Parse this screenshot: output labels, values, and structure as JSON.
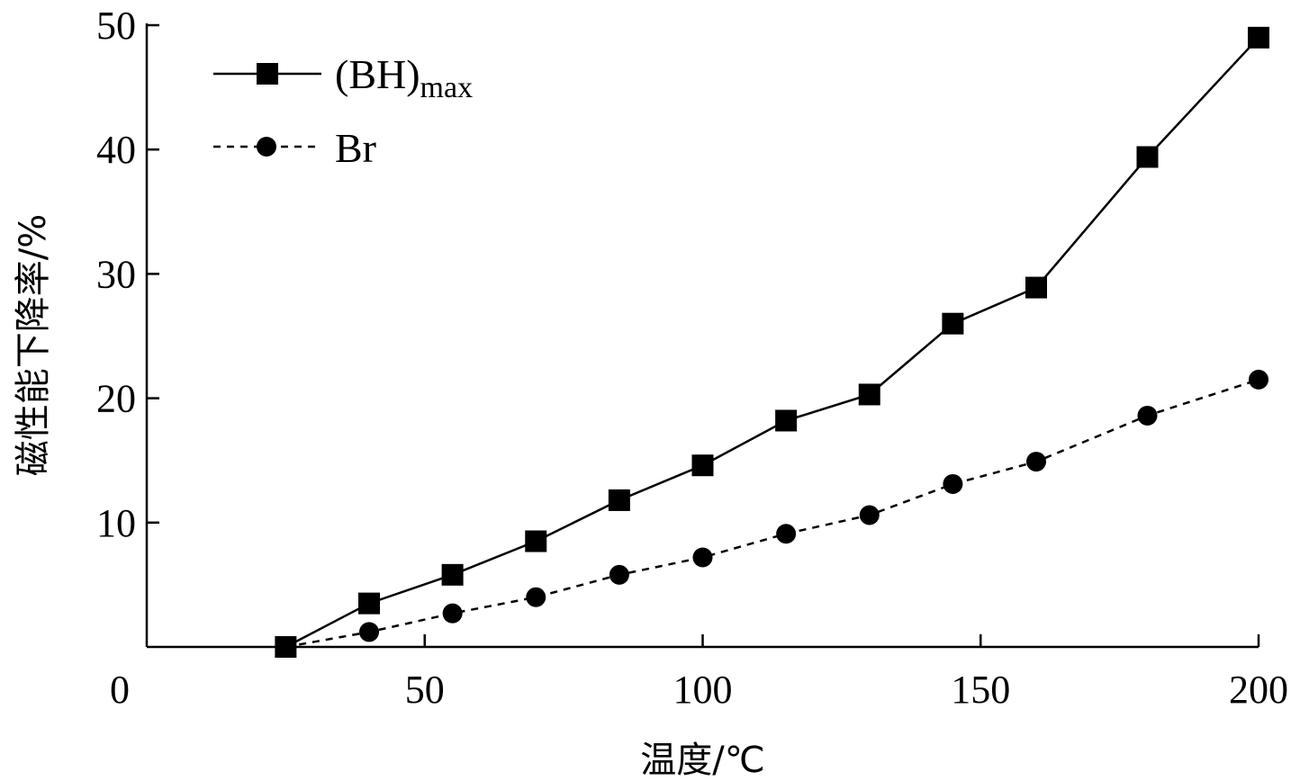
{
  "chart_data": {
    "type": "line",
    "xlabel": "温度/℃",
    "ylabel": "磁性能下降率/%",
    "xlim": [
      0,
      200
    ],
    "ylim": [
      0,
      50
    ],
    "x_ticks": [
      50,
      100,
      150,
      200
    ],
    "y_ticks": [
      10,
      20,
      30,
      40,
      50
    ],
    "origin_label": "0",
    "grid": false,
    "legend_position": "top-left",
    "series": [
      {
        "name": "(BH)max",
        "name_main": "(BH)",
        "name_sub": "max",
        "marker": "square",
        "line_style": "solid",
        "color": "#000000",
        "x": [
          25,
          40,
          55,
          70,
          85,
          100,
          115,
          130,
          145,
          160,
          180,
          200
        ],
        "y": [
          0,
          3.5,
          5.8,
          8.5,
          11.8,
          14.6,
          18.2,
          20.3,
          26.0,
          28.9,
          39.4,
          49.0
        ]
      },
      {
        "name": "Br",
        "marker": "circle",
        "line_style": "dashed",
        "color": "#000000",
        "x": [
          25,
          40,
          55,
          70,
          85,
          100,
          115,
          130,
          145,
          160,
          180,
          200
        ],
        "y": [
          0,
          1.2,
          2.7,
          4.0,
          5.8,
          7.2,
          9.1,
          10.6,
          13.1,
          14.9,
          18.6,
          21.5
        ]
      }
    ]
  }
}
